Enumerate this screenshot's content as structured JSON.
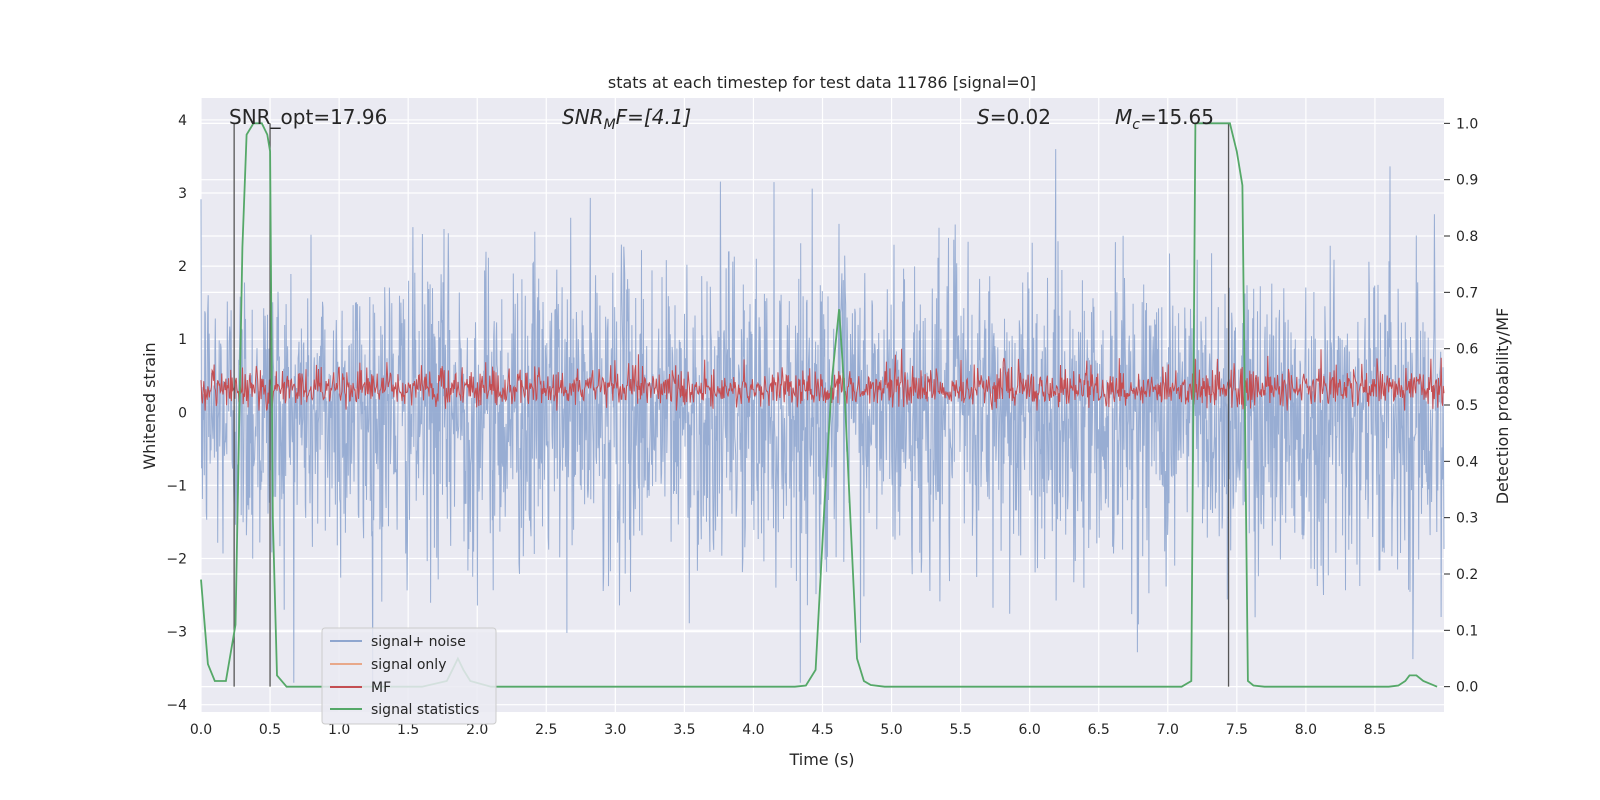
{
  "chart_data": {
    "type": "line",
    "title": "stats at each timestep for test data 11786 [signal=0]",
    "xlabel": "Time (s)",
    "ylabel_left": "Whitened strain",
    "ylabel_right": "Detection probability/MF",
    "xlim": [
      0,
      9.0
    ],
    "ylim_left": [
      -4.1,
      4.3
    ],
    "ylim_right": [
      -0.045,
      1.045
    ],
    "x_ticks": [
      0.0,
      0.5,
      1.0,
      1.5,
      2.0,
      2.5,
      3.0,
      3.5,
      4.0,
      4.5,
      5.0,
      5.5,
      6.0,
      6.5,
      7.0,
      7.5,
      8.0,
      8.5
    ],
    "y_left_ticks": [
      -4,
      -3,
      -2,
      -1,
      0,
      1,
      2,
      3,
      4
    ],
    "y_right_ticks": [
      0.0,
      0.1,
      0.2,
      0.3,
      0.4,
      0.5,
      0.6,
      0.7,
      0.8,
      0.9,
      1.0
    ],
    "grid": true,
    "legend_position": "lower-left",
    "annotations": {
      "snr_opt": "SNR_opt=17.96",
      "snr_mf_base": "SNR",
      "snr_mf_sub": "M",
      "snr_mf_rest": "F=[4.1]",
      "s_var": "S",
      "s_rest": "=0.02",
      "mc_var": "M",
      "mc_sub": "c",
      "mc_rest": "=15.65"
    },
    "series": [
      {
        "name": "signal+ noise",
        "color": "#8fa6cf",
        "axis": "left",
        "description_range": [
          -3.7,
          3.9
        ]
      },
      {
        "name": "signal only",
        "color": "#e8a88a",
        "axis": "left",
        "x": [],
        "y": []
      },
      {
        "name": "MF",
        "color": "#c44e52",
        "axis": "right",
        "description_range": [
          0.49,
          0.6
        ]
      },
      {
        "name": "signal statistics",
        "color": "#55a868",
        "axis": "right",
        "x": [
          0.0,
          0.05,
          0.1,
          0.18,
          0.25,
          0.3,
          0.33,
          0.38,
          0.44,
          0.48,
          0.5,
          0.52,
          0.55,
          0.62,
          0.8,
          1.6,
          1.78,
          1.82,
          1.86,
          1.9,
          1.95,
          2.1,
          4.3,
          4.38,
          4.45,
          4.52,
          4.57,
          4.62,
          4.66,
          4.7,
          4.75,
          4.8,
          4.85,
          4.95,
          7.1,
          7.17,
          7.2,
          7.25,
          7.3,
          7.45,
          7.5,
          7.54,
          7.58,
          7.62,
          7.7,
          8.6,
          8.67,
          8.72,
          8.75,
          8.8,
          8.85,
          8.95
        ],
        "y": [
          0.19,
          0.04,
          0.01,
          0.01,
          0.11,
          0.78,
          0.98,
          1.0,
          1.0,
          0.98,
          0.95,
          0.3,
          0.02,
          0.0,
          0.0,
          0.0,
          0.01,
          0.03,
          0.05,
          0.03,
          0.01,
          0.0,
          0.0,
          0.002,
          0.03,
          0.35,
          0.55,
          0.67,
          0.52,
          0.31,
          0.05,
          0.01,
          0.003,
          0.0,
          0.0,
          0.01,
          1.0,
          1.0,
          1.0,
          1.0,
          0.95,
          0.89,
          0.01,
          0.002,
          0.0,
          0.0,
          0.002,
          0.01,
          0.02,
          0.02,
          0.01,
          0.0
        ]
      }
    ],
    "vertical_markers": [
      0.24,
      0.5,
      7.44
    ]
  }
}
